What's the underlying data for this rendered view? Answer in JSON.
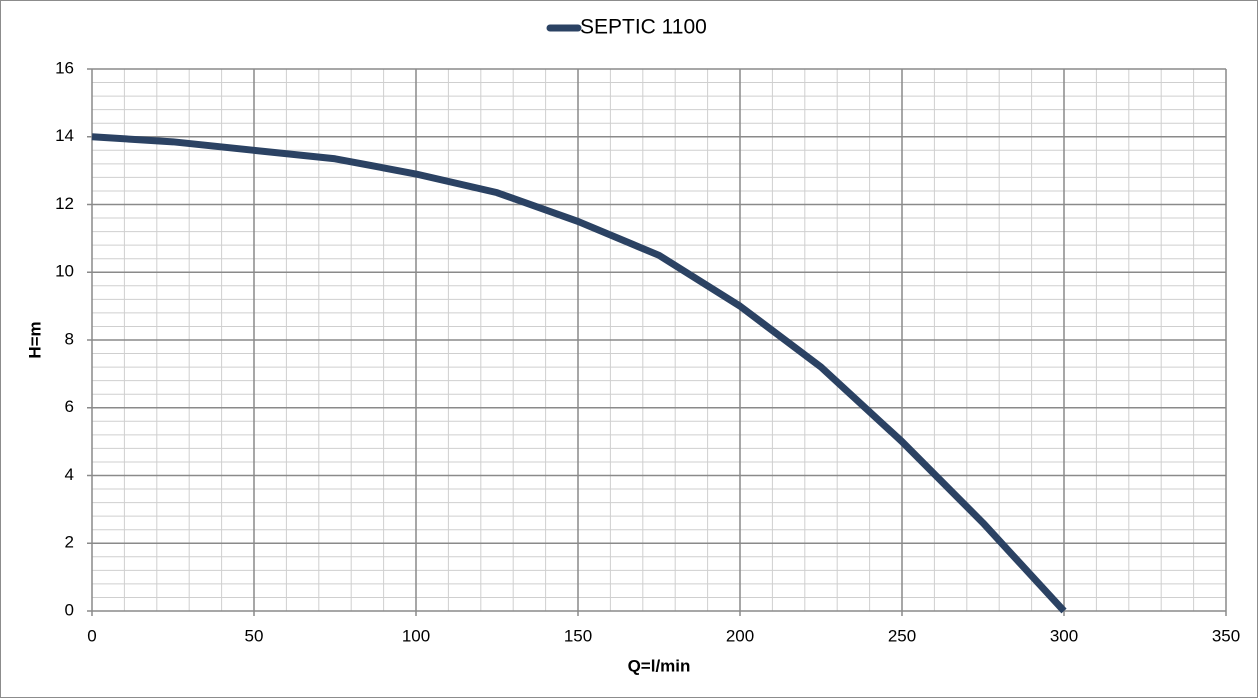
{
  "chart_data": {
    "type": "line",
    "legend": "SEPTIC 1100",
    "xlabel": "Q=l/min",
    "ylabel": "H=m",
    "series": [
      {
        "name": "SEPTIC 1100",
        "color": "#2b4263",
        "x": [
          0,
          25,
          50,
          75,
          100,
          125,
          150,
          175,
          200,
          225,
          250,
          275,
          300
        ],
        "values": [
          14,
          13.85,
          13.6,
          13.35,
          12.9,
          12.35,
          11.5,
          10.5,
          9.0,
          7.2,
          5.0,
          2.6,
          0
        ]
      }
    ],
    "xlim": [
      0,
      350
    ],
    "xticks": [
      0,
      50,
      100,
      150,
      200,
      250,
      300,
      350
    ],
    "ylim": [
      0,
      16
    ],
    "yticks": [
      0,
      2,
      4,
      6,
      8,
      10,
      12,
      14,
      16
    ],
    "grid": true,
    "minor_xstep": 10,
    "minor_ystep": 0.4,
    "legend_position": "top"
  }
}
